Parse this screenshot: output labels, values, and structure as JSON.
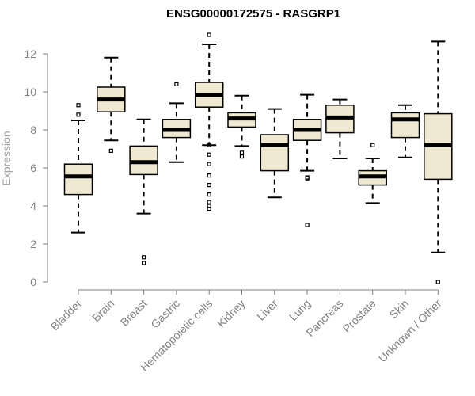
{
  "chart_data": {
    "type": "boxplot",
    "title": "ENSG00000172575 - RASGRP1",
    "xlabel": "",
    "ylabel": "Expression",
    "ylim": [
      0,
      12
    ],
    "yticks": [
      0,
      2,
      4,
      6,
      8,
      10,
      12
    ],
    "grid": false,
    "box_color": "#efe9d2",
    "categories": [
      "Bladder",
      "Brain",
      "Breast",
      "Gastric",
      "Hematopoietic cells",
      "Kidney",
      "Liver",
      "Lung",
      "Pancreas",
      "Prostate",
      "Skin",
      "Unknown / Other"
    ],
    "boxes": [
      {
        "category": "Bladder",
        "whisker_low": 2.6,
        "q1": 4.6,
        "median": 5.55,
        "q3": 6.2,
        "whisker_high": 8.5,
        "outliers": [
          8.8,
          9.3
        ]
      },
      {
        "category": "Brain",
        "whisker_low": 7.45,
        "q1": 8.95,
        "median": 9.6,
        "q3": 10.25,
        "whisker_high": 11.8,
        "outliers": [
          6.9
        ]
      },
      {
        "category": "Breast",
        "whisker_low": 3.6,
        "q1": 5.65,
        "median": 6.3,
        "q3": 7.15,
        "whisker_high": 8.55,
        "outliers": [
          1.3,
          1.0
        ]
      },
      {
        "category": "Gastric",
        "whisker_low": 6.3,
        "q1": 7.6,
        "median": 8.0,
        "q3": 8.55,
        "whisker_high": 9.4,
        "outliers": [
          10.4
        ]
      },
      {
        "category": "Hematopoietic cells",
        "whisker_low": 7.2,
        "q1": 9.2,
        "median": 9.85,
        "q3": 10.5,
        "whisker_high": 12.5,
        "outliers": [
          13.0,
          7.2,
          6.7,
          6.2,
          5.6,
          5.1,
          4.6,
          4.2,
          4.0,
          3.85
        ]
      },
      {
        "category": "Kidney",
        "whisker_low": 7.15,
        "q1": 8.15,
        "median": 8.6,
        "q3": 8.9,
        "whisker_high": 9.8,
        "outliers": [
          6.8,
          6.6
        ]
      },
      {
        "category": "Liver",
        "whisker_low": 4.45,
        "q1": 5.85,
        "median": 7.2,
        "q3": 7.75,
        "whisker_high": 9.1,
        "outliers": []
      },
      {
        "category": "Lung",
        "whisker_low": 5.85,
        "q1": 7.45,
        "median": 8.0,
        "q3": 8.55,
        "whisker_high": 9.85,
        "outliers": [
          5.5,
          5.45,
          3.0
        ]
      },
      {
        "category": "Pancreas",
        "whisker_low": 6.5,
        "q1": 7.85,
        "median": 8.65,
        "q3": 9.3,
        "whisker_high": 9.6,
        "outliers": []
      },
      {
        "category": "Prostate",
        "whisker_low": 4.15,
        "q1": 5.1,
        "median": 5.55,
        "q3": 5.85,
        "whisker_high": 6.5,
        "outliers": [
          7.2
        ]
      },
      {
        "category": "Skin",
        "whisker_low": 6.55,
        "q1": 7.6,
        "median": 8.55,
        "q3": 8.9,
        "whisker_high": 9.3,
        "outliers": []
      },
      {
        "category": "Unknown / Other",
        "whisker_low": 1.55,
        "q1": 5.4,
        "median": 7.2,
        "q3": 8.85,
        "whisker_high": 12.65,
        "outliers": [
          0.0
        ]
      }
    ]
  }
}
